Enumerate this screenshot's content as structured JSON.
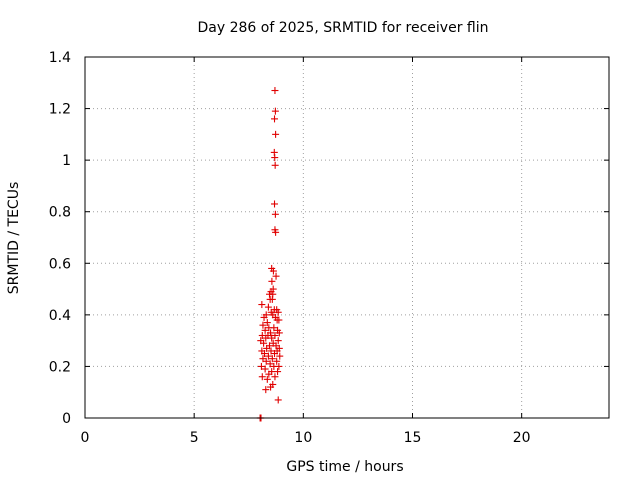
{
  "chart_data": {
    "type": "scatter",
    "title": "Day 286 of 2025, SRMTID for receiver flin",
    "xlabel": "GPS time / hours",
    "ylabel": "SRMTID / TECUs",
    "xlim": [
      0,
      24
    ],
    "ylim": [
      0,
      1.4
    ],
    "xticks": [
      0,
      5,
      10,
      15,
      20
    ],
    "yticks": [
      0,
      0.2,
      0.4,
      0.6,
      0.8,
      1,
      1.2,
      1.4
    ],
    "ytick_labels": [
      "0",
      "0.2",
      "0.4",
      "0.6",
      "0.8",
      "1",
      "1.2",
      "1.4"
    ],
    "grid": true,
    "marker": "+",
    "color": "#e00000",
    "series": [
      {
        "name": "SRMTID",
        "points": [
          [
            8.02,
            0.0
          ],
          [
            8.04,
            0.0
          ],
          [
            8.06,
            0.0
          ],
          [
            8.7,
            1.27
          ],
          [
            8.72,
            1.19
          ],
          [
            8.68,
            1.16
          ],
          [
            8.73,
            1.1
          ],
          [
            8.67,
            1.03
          ],
          [
            8.69,
            1.01
          ],
          [
            8.71,
            0.98
          ],
          [
            8.68,
            0.83
          ],
          [
            8.72,
            0.79
          ],
          [
            8.7,
            0.73
          ],
          [
            8.73,
            0.72
          ],
          [
            8.55,
            0.58
          ],
          [
            8.63,
            0.57
          ],
          [
            8.75,
            0.55
          ],
          [
            8.56,
            0.53
          ],
          [
            8.62,
            0.5
          ],
          [
            8.52,
            0.49
          ],
          [
            8.45,
            0.48
          ],
          [
            8.6,
            0.48
          ],
          [
            8.48,
            0.46
          ],
          [
            8.58,
            0.46
          ],
          [
            8.1,
            0.44
          ],
          [
            8.4,
            0.43
          ],
          [
            8.67,
            0.42
          ],
          [
            8.78,
            0.42
          ],
          [
            8.85,
            0.41
          ],
          [
            8.53,
            0.41
          ],
          [
            8.6,
            0.4
          ],
          [
            8.3,
            0.4
          ],
          [
            8.2,
            0.39
          ],
          [
            8.72,
            0.39
          ],
          [
            8.8,
            0.38
          ],
          [
            8.88,
            0.38
          ],
          [
            8.35,
            0.37
          ],
          [
            8.15,
            0.36
          ],
          [
            8.42,
            0.35
          ],
          [
            8.65,
            0.35
          ],
          [
            8.25,
            0.34
          ],
          [
            8.82,
            0.34
          ],
          [
            8.5,
            0.33
          ],
          [
            8.9,
            0.33
          ],
          [
            8.12,
            0.32
          ],
          [
            8.38,
            0.32
          ],
          [
            8.7,
            0.32
          ],
          [
            8.28,
            0.31
          ],
          [
            8.55,
            0.31
          ],
          [
            8.05,
            0.3
          ],
          [
            8.85,
            0.3
          ],
          [
            8.18,
            0.29
          ],
          [
            8.62,
            0.29
          ],
          [
            8.45,
            0.28
          ],
          [
            8.75,
            0.28
          ],
          [
            8.32,
            0.27
          ],
          [
            8.9,
            0.27
          ],
          [
            8.1,
            0.26
          ],
          [
            8.52,
            0.26
          ],
          [
            8.8,
            0.26
          ],
          [
            8.22,
            0.25
          ],
          [
            8.68,
            0.25
          ],
          [
            8.4,
            0.24
          ],
          [
            8.92,
            0.24
          ],
          [
            8.15,
            0.23
          ],
          [
            8.58,
            0.23
          ],
          [
            8.3,
            0.22
          ],
          [
            8.78,
            0.22
          ],
          [
            8.48,
            0.21
          ],
          [
            8.08,
            0.2
          ],
          [
            8.65,
            0.2
          ],
          [
            8.88,
            0.2
          ],
          [
            8.25,
            0.19
          ],
          [
            8.55,
            0.18
          ],
          [
            8.82,
            0.18
          ],
          [
            8.42,
            0.17
          ],
          [
            8.12,
            0.16
          ],
          [
            8.7,
            0.16
          ],
          [
            8.35,
            0.15
          ],
          [
            8.6,
            0.13
          ],
          [
            8.5,
            0.12
          ],
          [
            8.28,
            0.11
          ],
          [
            8.85,
            0.07
          ]
        ]
      }
    ]
  }
}
